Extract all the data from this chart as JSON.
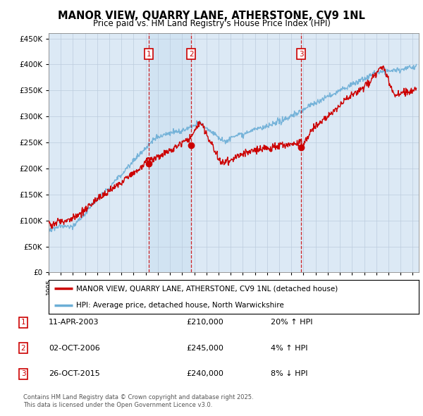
{
  "title": "MANOR VIEW, QUARRY LANE, ATHERSTONE, CV9 1NL",
  "subtitle": "Price paid vs. HM Land Registry's House Price Index (HPI)",
  "ylabel_ticks": [
    "£0",
    "£50K",
    "£100K",
    "£150K",
    "£200K",
    "£250K",
    "£300K",
    "£350K",
    "£400K",
    "£450K"
  ],
  "ytick_values": [
    0,
    50000,
    100000,
    150000,
    200000,
    250000,
    300000,
    350000,
    400000,
    450000
  ],
  "ylim": [
    0,
    460000
  ],
  "xlim_start": 1995.0,
  "xlim_end": 2025.5,
  "transaction_dates": [
    2003.27,
    2006.75,
    2015.82
  ],
  "transaction_prices": [
    210000,
    245000,
    240000
  ],
  "transaction_labels": [
    "1",
    "2",
    "3"
  ],
  "legend_line1": "MANOR VIEW, QUARRY LANE, ATHERSTONE, CV9 1NL (detached house)",
  "legend_line2": "HPI: Average price, detached house, North Warwickshire",
  "table_rows": [
    {
      "label": "1",
      "date": "11-APR-2003",
      "price": "£210,000",
      "change": "20% ↑ HPI"
    },
    {
      "label": "2",
      "date": "02-OCT-2006",
      "price": "£245,000",
      "change": "4% ↑ HPI"
    },
    {
      "label": "3",
      "date": "26-OCT-2015",
      "price": "£240,000",
      "change": "8% ↓ HPI"
    }
  ],
  "footer": "Contains HM Land Registry data © Crown copyright and database right 2025.\nThis data is licensed under the Open Government Licence v3.0.",
  "hpi_color": "#6baed6",
  "price_color": "#cc0000",
  "vline_color": "#cc0000",
  "box_color": "#cc0000",
  "background_color": "#dce9f5",
  "grid_color": "#bbccdd"
}
